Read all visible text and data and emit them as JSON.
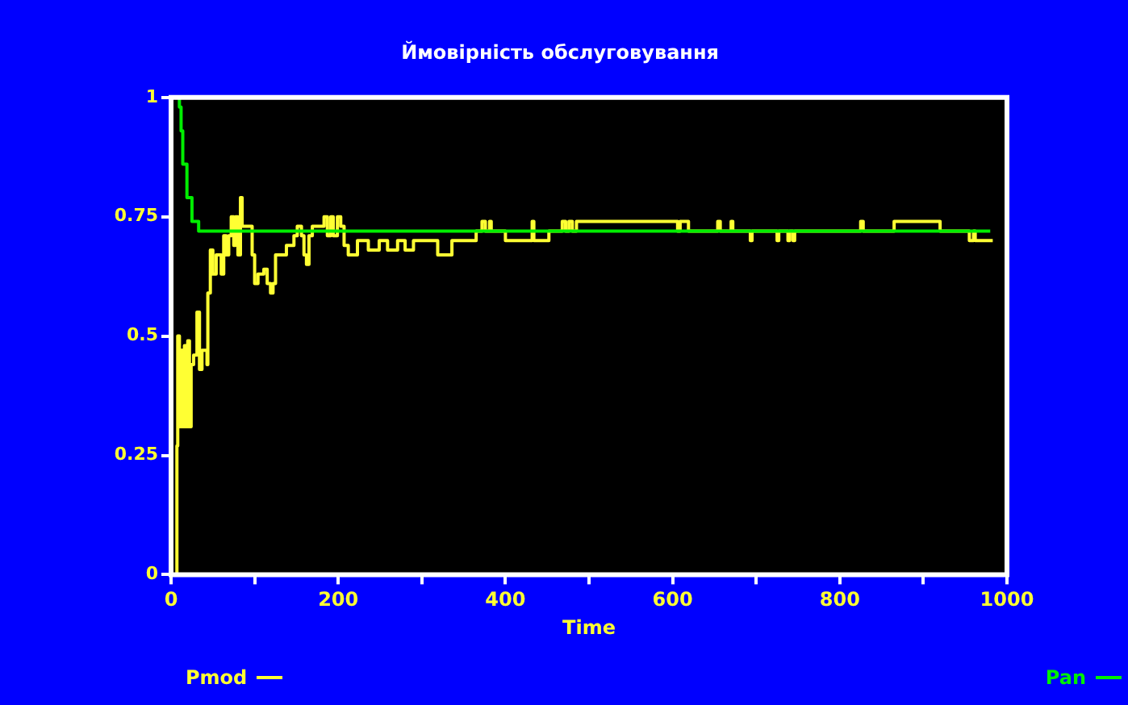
{
  "chart_data": {
    "type": "step",
    "title": "Ймовірність обслуговування",
    "xlabel": "Time",
    "xlim": [
      0,
      1000
    ],
    "xticks": [
      0,
      {
        "value": 100,
        "label": null
      },
      200,
      {
        "value": 300,
        "label": null
      },
      400,
      {
        "value": 500,
        "label": null
      },
      600,
      {
        "value": 700,
        "label": null
      },
      800,
      {
        "value": 900,
        "label": null
      },
      1000
    ],
    "ylim": [
      0,
      1
    ],
    "yticks": [
      0,
      0.25,
      0.5,
      0.75,
      1
    ],
    "legend": "bottom",
    "marker": "none",
    "line_style": "solid",
    "series": [
      {
        "name": "Pmod",
        "color": "#ffff33",
        "x": [
          6,
          7,
          8,
          10,
          12,
          14,
          16,
          18,
          20,
          22,
          24,
          27,
          31,
          34,
          37,
          43,
          44,
          47,
          50,
          54,
          60,
          63,
          66,
          69,
          72,
          75,
          77,
          80,
          83,
          85,
          97,
          100,
          104,
          111,
          115,
          119,
          122,
          125,
          138,
          147,
          151,
          156,
          159,
          162,
          165,
          169,
          183,
          187,
          191,
          194,
          199,
          203,
          207,
          212,
          223,
          236,
          249,
          259,
          271,
          280,
          290,
          303,
          319,
          336,
          365,
          372,
          376,
          381,
          383,
          400,
          432,
          434,
          452,
          468,
          472,
          476,
          480,
          485,
          580,
          606,
          609,
          619,
          654,
          657,
          670,
          672,
          693,
          695,
          725,
          727,
          738,
          740,
          744,
          746,
          825,
          828,
          865,
          920,
          955,
          960,
          962,
          983
        ],
        "values": [
          0,
          0.27,
          0.5,
          0.31,
          0.47,
          0.31,
          0.48,
          0.31,
          0.49,
          0.31,
          0.44,
          0.46,
          0.55,
          0.43,
          0.47,
          0.44,
          0.59,
          0.68,
          0.63,
          0.67,
          0.63,
          0.71,
          0.67,
          0.71,
          0.75,
          0.69,
          0.75,
          0.67,
          0.79,
          0.73,
          0.67,
          0.61,
          0.63,
          0.64,
          0.61,
          0.59,
          0.61,
          0.67,
          0.69,
          0.71,
          0.73,
          0.71,
          0.67,
          0.65,
          0.71,
          0.73,
          0.75,
          0.71,
          0.75,
          0.71,
          0.75,
          0.73,
          0.69,
          0.67,
          0.7,
          0.68,
          0.7,
          0.68,
          0.7,
          0.68,
          0.7,
          0.7,
          0.67,
          0.7,
          0.72,
          0.74,
          0.72,
          0.74,
          0.72,
          0.7,
          0.74,
          0.7,
          0.72,
          0.74,
          0.72,
          0.74,
          0.72,
          0.74,
          0.74,
          0.72,
          0.74,
          0.72,
          0.74,
          0.72,
          0.74,
          0.72,
          0.7,
          0.72,
          0.7,
          0.72,
          0.7,
          0.72,
          0.7,
          0.72,
          0.74,
          0.72,
          0.74,
          0.72,
          0.7,
          0.72,
          0.7,
          0.7
        ]
      },
      {
        "name": "Pan",
        "color": "#00ee00",
        "x": [
          3,
          10,
          12,
          14,
          19,
          25,
          33,
          980
        ],
        "values": [
          1,
          0.98,
          0.93,
          0.86,
          0.79,
          0.74,
          0.72,
          0.72
        ]
      }
    ]
  }
}
